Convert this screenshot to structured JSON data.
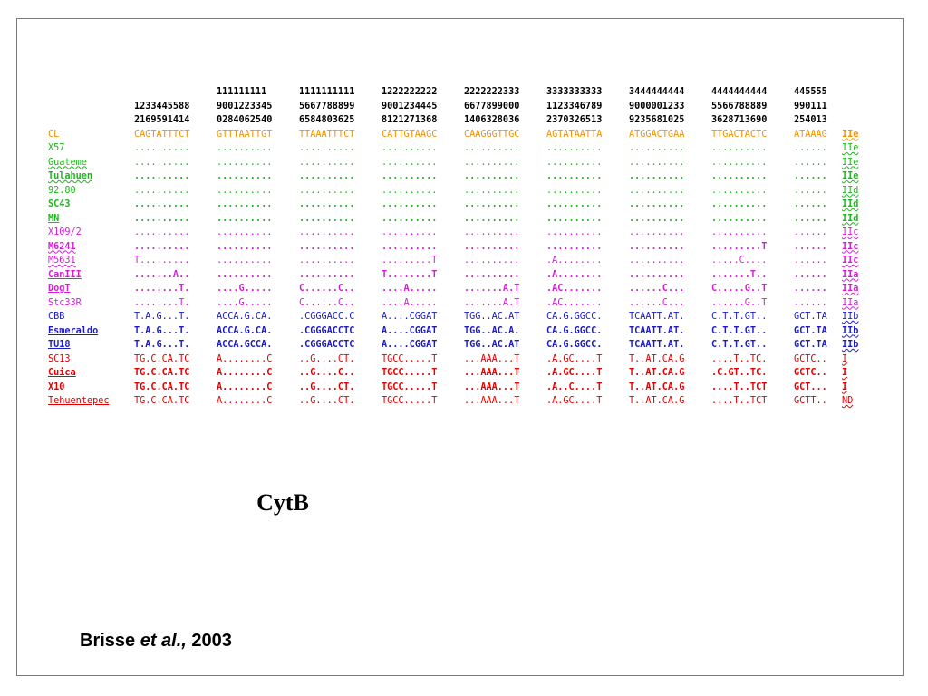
{
  "header": [
    {
      "blocks": [
        "",
        "111111111",
        "1111111111",
        "1222222222",
        "2222222333",
        "3333333333",
        "3444444444",
        "4444444444",
        "445555"
      ]
    },
    {
      "blocks": [
        "1233445588",
        "9001223345",
        "5667788899",
        "9001234445",
        "6677899000",
        "1123346789",
        "9000001233",
        "5566788889",
        "990111"
      ]
    },
    {
      "blocks": [
        "2169591414",
        "0284062540",
        "6584803625",
        "8121271368",
        "1406328036",
        "2370326513",
        "9235681025",
        "3628713690",
        "254013"
      ]
    }
  ],
  "colors": {
    "orange": "#f39200",
    "green": "#1fb51f",
    "magenta": "#d21fd2",
    "blue": "#1c1cc6",
    "red": "#e00000"
  },
  "rows": [
    {
      "name": "CL",
      "color": "orange",
      "bold": false,
      "underline": "none",
      "blocks": [
        "CAGTATTTCT",
        "GTTTAATTGT",
        "TTAAATTTCT",
        "CATTGTAAGC",
        "CAAGGGTTGC",
        "AGTATAATTA",
        "ATGGACTGAA",
        "TTGACTACTC",
        "ATAAAG"
      ],
      "tag": "IIe",
      "tag_bold": true
    },
    {
      "name": "X57",
      "color": "green",
      "bold": false,
      "underline": "none",
      "blocks": [
        "..........",
        "..........",
        "..........",
        "..........",
        "..........",
        "..........",
        "..........",
        "..........",
        "......"
      ],
      "tag": "IIe",
      "tag_bold": false
    },
    {
      "name": "Guateme",
      "color": "green",
      "bold": false,
      "underline": "wavy",
      "blocks": [
        "..........",
        "..........",
        "..........",
        "..........",
        "..........",
        "..........",
        "..........",
        "..........",
        "......"
      ],
      "tag": "IIe",
      "tag_bold": false
    },
    {
      "name": "Tulahuen",
      "color": "green",
      "bold": true,
      "underline": "wavy",
      "blocks": [
        "..........",
        "..........",
        "..........",
        "..........",
        "..........",
        "..........",
        "..........",
        "..........",
        "......"
      ],
      "tag": "IIe",
      "tag_bold": true
    },
    {
      "name": "92.80",
      "color": "green",
      "bold": false,
      "underline": "none",
      "blocks": [
        "..........",
        "..........",
        "..........",
        "..........",
        "..........",
        "..........",
        "..........",
        "..........",
        "......"
      ],
      "tag": "IId",
      "tag_bold": false
    },
    {
      "name": "SC43",
      "color": "green",
      "bold": true,
      "underline": "solid",
      "blocks": [
        "..........",
        "..........",
        "..........",
        "..........",
        "..........",
        "..........",
        "..........",
        "..........",
        "......"
      ],
      "tag": "IId",
      "tag_bold": true
    },
    {
      "name": "MN",
      "color": "green",
      "bold": true,
      "underline": "solid",
      "blocks": [
        "..........",
        "..........",
        "..........",
        "..........",
        "..........",
        "..........",
        "..........",
        "..........",
        "......"
      ],
      "tag": "IId",
      "tag_bold": true
    },
    {
      "name": "X109/2",
      "color": "magenta",
      "bold": false,
      "underline": "none",
      "blocks": [
        "..........",
        "..........",
        "..........",
        "..........",
        "..........",
        "..........",
        "..........",
        "..........",
        "......"
      ],
      "tag": "IIc",
      "tag_bold": false
    },
    {
      "name": "M6241",
      "color": "magenta",
      "bold": true,
      "underline": "wavy",
      "blocks": [
        "..........",
        "..........",
        "..........",
        "..........",
        "..........",
        "..........",
        "..........",
        ".........T",
        "......"
      ],
      "tag": "IIc",
      "tag_bold": true
    },
    {
      "name": "M5631",
      "color": "magenta",
      "bold": false,
      "underline": "wavy",
      "blocks": [
        "T.........",
        "..........",
        "..........",
        ".........T",
        "..........",
        ".A........",
        "..........",
        ".....C....",
        "......"
      ],
      "tag": "IIc",
      "tag_bold": true
    },
    {
      "name": "CanIII",
      "color": "magenta",
      "bold": true,
      "underline": "solid",
      "blocks": [
        ".......A..",
        "..........",
        "..........",
        "T........T",
        "..........",
        ".A........",
        "..........",
        ".......T..",
        "......"
      ],
      "tag": "IIa",
      "tag_bold": true
    },
    {
      "name": "DogT",
      "color": "magenta",
      "bold": true,
      "underline": "solid",
      "blocks": [
        "........T.",
        "....G.....",
        "C......C..",
        "....A.....",
        ".......A.T",
        ".AC.......",
        "......C...",
        "C.....G..T",
        "......"
      ],
      "tag": "IIa",
      "tag_bold": true
    },
    {
      "name": "Stc33R",
      "color": "magenta",
      "bold": false,
      "underline": "none",
      "blocks": [
        "........T.",
        "....G.....",
        "C......C..",
        "....A.....",
        ".......A.T",
        ".AC.......",
        "......C...",
        "......G..T",
        "......"
      ],
      "tag": "IIa",
      "tag_bold": false
    },
    {
      "name": "CBB",
      "color": "blue",
      "bold": false,
      "underline": "none",
      "blocks": [
        "T.A.G...T.",
        "ACCA.G.CA.",
        ".CGGGACC.C",
        "A....CGGAT",
        "TGG..AC.AT",
        "CA.G.GGCC.",
        "TCAATT.AT.",
        "C.T.T.GT..",
        "GCT.TA"
      ],
      "tag": "IIb",
      "tag_bold": false
    },
    {
      "name": "Esmeraldo",
      "color": "blue",
      "bold": true,
      "underline": "solid",
      "blocks": [
        "T.A.G...T.",
        "ACCA.G.CA.",
        ".CGGGACCTC",
        "A....CGGAT",
        "TGG..AC.A.",
        "CA.G.GGCC.",
        "TCAATT.AT.",
        "C.T.T.GT..",
        "GCT.TA"
      ],
      "tag": "IIb",
      "tag_bold": true
    },
    {
      "name": "TU18",
      "color": "blue",
      "bold": true,
      "underline": "solid",
      "blocks": [
        "T.A.G...T.",
        "ACCA.GCCA.",
        ".CGGGACCTC",
        "A....CGGAT",
        "TGG..AC.AT",
        "CA.G.GGCC.",
        "TCAATT.AT.",
        "C.T.T.GT..",
        "GCT.TA"
      ],
      "tag": "IIb",
      "tag_bold": true
    },
    {
      "name": "SC13",
      "color": "red",
      "bold": false,
      "underline": "none",
      "blocks": [
        "TG.C.CA.TC",
        "A........C",
        "..G....CT.",
        "TGCC.....T",
        "...AAA...T",
        ".A.GC....T",
        "T..AT.CA.G",
        "....T..TC.",
        "GCTC.."
      ],
      "tag": "I",
      "tag_bold": false
    },
    {
      "name": "Cuica",
      "color": "red",
      "bold": true,
      "underline": "solid",
      "blocks": [
        "TG.C.CA.TC",
        "A........C",
        "..G....C..",
        "TGCC.....T",
        "...AAA...T",
        ".A.GC....T",
        "T..AT.CA.G",
        ".C.GT..TC.",
        "GCTC.."
      ],
      "tag": "I",
      "tag_bold": true
    },
    {
      "name": "X10",
      "color": "red",
      "bold": true,
      "underline": "solid",
      "blocks": [
        "TG.C.CA.TC",
        "A........C",
        "..G....CT.",
        "TGCC.....T",
        "...AAA...T",
        ".A..C....T",
        "T..AT.CA.G",
        "....T..TCT",
        "GCT..."
      ],
      "tag": "I",
      "tag_bold": true
    },
    {
      "name": "Tehuentepec",
      "color": "red",
      "bold": false,
      "underline": "solid",
      "blocks": [
        "TG.C.CA.TC",
        "A........C",
        "..G....CT.",
        "TGCC.....T",
        "...AAA...T",
        ".A.GC....T",
        "T..AT.CA.G",
        "....T..TCT",
        "GCTT.."
      ],
      "tag": "ND",
      "tag_bold": false
    }
  ],
  "title": "CytB",
  "citation": {
    "author": "Brisse",
    "etal": "et al.,",
    "year": "2003"
  }
}
